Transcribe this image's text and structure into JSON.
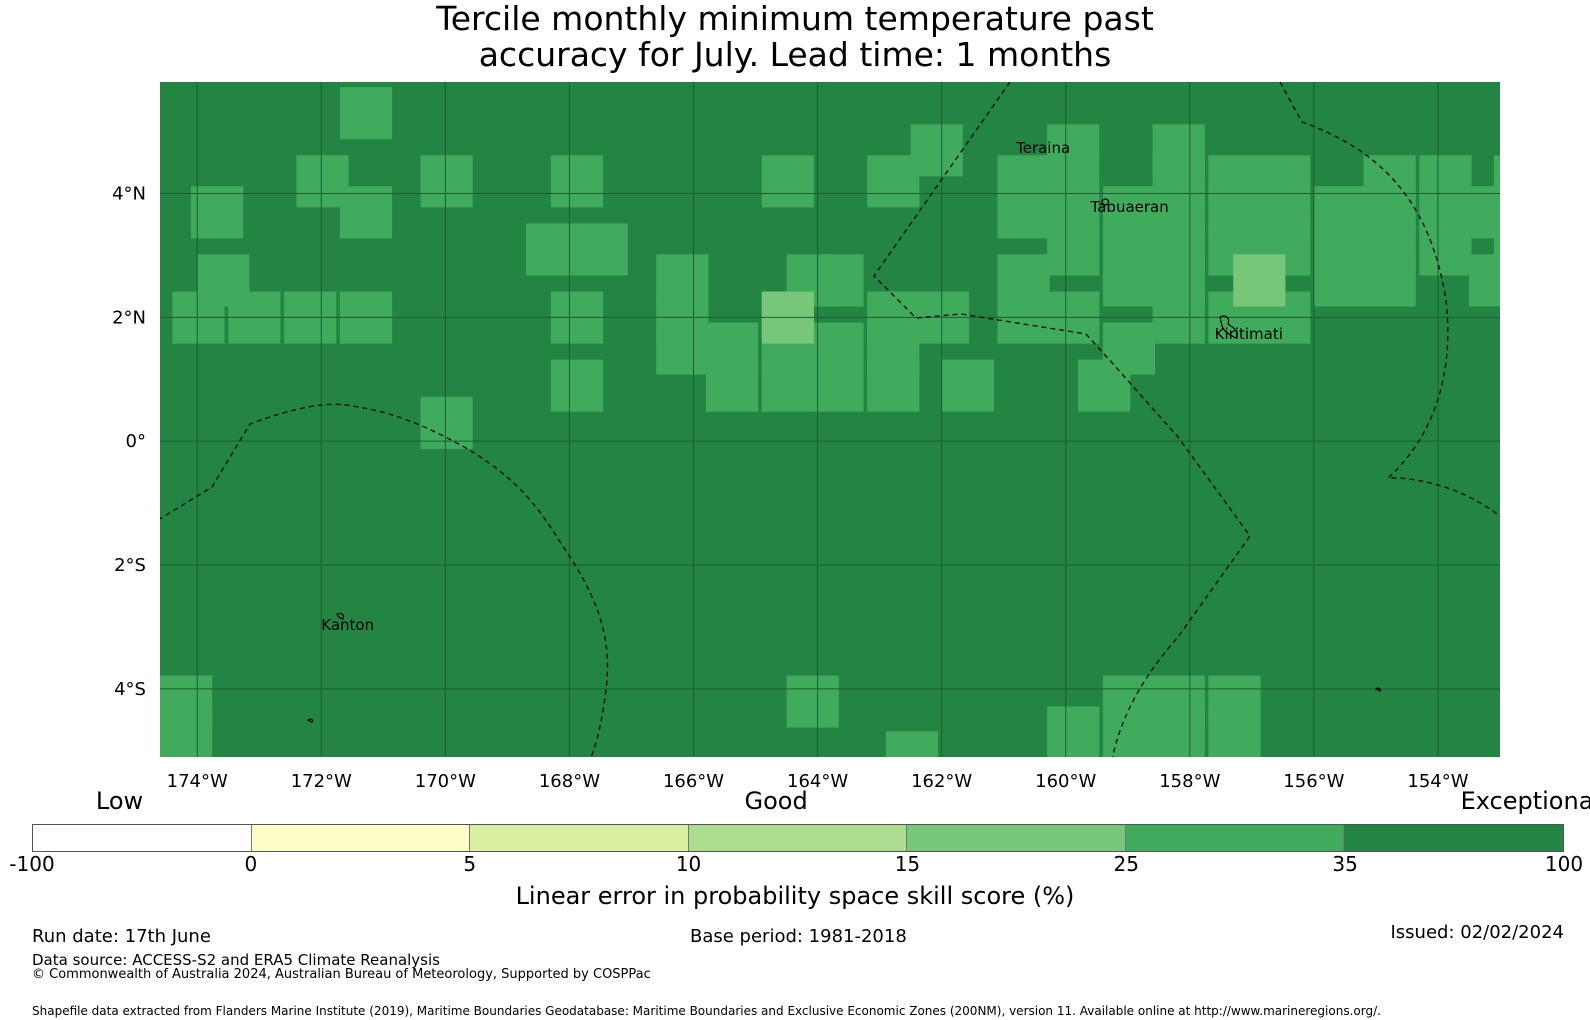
{
  "title_line1": "Tercile monthly minimum temperature past",
  "title_line2": "accuracy for July. Lead time: 1 months",
  "map": {
    "extent": {
      "lon_min": -174.6,
      "lon_max": -153.0,
      "lat_min": -5.1,
      "lat_max": 5.8
    },
    "grid_cell_deg": 0.833,
    "base_color": "#238443",
    "lon_ticks": [
      {
        "value": -174,
        "label": "174°W"
      },
      {
        "value": -172,
        "label": "172°W"
      },
      {
        "value": -170,
        "label": "170°W"
      },
      {
        "value": -168,
        "label": "168°W"
      },
      {
        "value": -166,
        "label": "166°W"
      },
      {
        "value": -164,
        "label": "164°W"
      },
      {
        "value": -162,
        "label": "162°W"
      },
      {
        "value": -160,
        "label": "160°W"
      },
      {
        "value": -158,
        "label": "158°W"
      },
      {
        "value": -156,
        "label": "156°W"
      },
      {
        "value": -154,
        "label": "154°W"
      }
    ],
    "lat_ticks": [
      {
        "value": 4,
        "label": "4°N"
      },
      {
        "value": 2,
        "label": "2°N"
      },
      {
        "value": 0,
        "label": "0°"
      },
      {
        "value": -2,
        "label": "2°S"
      },
      {
        "value": -4,
        "label": "4°S"
      }
    ],
    "places": [
      {
        "name": "Teraina",
        "lon": -160.8,
        "lat": 4.65
      },
      {
        "name": "Tabuaeran",
        "lon": -159.6,
        "lat": 3.7
      },
      {
        "name": "Kiritimati",
        "lon": -157.6,
        "lat": 1.65
      },
      {
        "name": "Kanton",
        "lon": -172.0,
        "lat": -3.05
      }
    ],
    "skill_cells": [
      {
        "lon": -171.7,
        "lat": 5.3,
        "v": 30
      },
      {
        "lon": -170.4,
        "lat": 4.2,
        "v": 30
      },
      {
        "lon": -174.1,
        "lat": 3.7,
        "v": 30
      },
      {
        "lon": -172.4,
        "lat": 4.2,
        "v": 30
      },
      {
        "lon": -171.7,
        "lat": 3.7,
        "v": 30
      },
      {
        "lon": -168.3,
        "lat": 4.2,
        "v": 30
      },
      {
        "lon": -164.9,
        "lat": 4.2,
        "v": 30
      },
      {
        "lon": -163.2,
        "lat": 4.2,
        "v": 30
      },
      {
        "lon": -162.5,
        "lat": 4.7,
        "v": 30
      },
      {
        "lon": -168.7,
        "lat": 3.1,
        "v": 30
      },
      {
        "lon": -167.9,
        "lat": 3.1,
        "v": 30
      },
      {
        "lon": -174.0,
        "lat": 2.6,
        "v": 30
      },
      {
        "lon": -174.4,
        "lat": 2.0,
        "v": 30
      },
      {
        "lon": -173.5,
        "lat": 2.0,
        "v": 30
      },
      {
        "lon": -172.6,
        "lat": 2.0,
        "v": 30
      },
      {
        "lon": -171.7,
        "lat": 2.0,
        "v": 30
      },
      {
        "lon": -168.3,
        "lat": 2.0,
        "v": 30
      },
      {
        "lon": -168.3,
        "lat": 0.9,
        "v": 30
      },
      {
        "lon": -170.4,
        "lat": 0.3,
        "v": 30
      },
      {
        "lon": -166.6,
        "lat": 2.6,
        "v": 30
      },
      {
        "lon": -166.6,
        "lat": 2.0,
        "v": 30
      },
      {
        "lon": -166.6,
        "lat": 1.5,
        "v": 30
      },
      {
        "lon": -165.8,
        "lat": 1.5,
        "v": 30
      },
      {
        "lon": -165.8,
        "lat": 0.9,
        "v": 30
      },
      {
        "lon": -164.9,
        "lat": 2.0,
        "v": 30
      },
      {
        "lon": -164.9,
        "lat": 1.5,
        "v": 30
      },
      {
        "lon": -164.9,
        "lat": 0.9,
        "v": 30
      },
      {
        "lon": -164.1,
        "lat": 2.6,
        "v": 30
      },
      {
        "lon": -164.1,
        "lat": 1.5,
        "v": 30
      },
      {
        "lon": -164.1,
        "lat": 0.9,
        "v": 30
      },
      {
        "lon": -164.5,
        "lat": 2.6,
        "v": 30
      },
      {
        "lon": -163.2,
        "lat": 2.0,
        "v": 30
      },
      {
        "lon": -163.2,
        "lat": 1.5,
        "v": 30
      },
      {
        "lon": -163.2,
        "lat": 0.9,
        "v": 30
      },
      {
        "lon": -162.4,
        "lat": 2.0,
        "v": 30
      },
      {
        "lon": -162.0,
        "lat": 0.9,
        "v": 30
      },
      {
        "lon": -161.1,
        "lat": 2.6,
        "v": 30
      },
      {
        "lon": -161.1,
        "lat": 2.0,
        "v": 30
      },
      {
        "lon": -161.1,
        "lat": 4.2,
        "v": 30
      },
      {
        "lon": -161.1,
        "lat": 3.7,
        "v": 30
      },
      {
        "lon": -160.3,
        "lat": 4.7,
        "v": 30
      },
      {
        "lon": -160.3,
        "lat": 4.2,
        "v": 30
      },
      {
        "lon": -160.3,
        "lat": 3.7,
        "v": 30
      },
      {
        "lon": -160.3,
        "lat": 3.1,
        "v": 30
      },
      {
        "lon": -159.4,
        "lat": 3.7,
        "v": 30
      },
      {
        "lon": -159.4,
        "lat": 3.1,
        "v": 30
      },
      {
        "lon": -159.4,
        "lat": 2.6,
        "v": 30
      },
      {
        "lon": -158.6,
        "lat": 4.7,
        "v": 30
      },
      {
        "lon": -158.6,
        "lat": 4.2,
        "v": 30
      },
      {
        "lon": -158.6,
        "lat": 3.7,
        "v": 30
      },
      {
        "lon": -158.6,
        "lat": 3.1,
        "v": 30
      },
      {
        "lon": -158.6,
        "lat": 2.6,
        "v": 30
      },
      {
        "lon": -158.6,
        "lat": 2.0,
        "v": 30
      },
      {
        "lon": -157.7,
        "lat": 4.2,
        "v": 30
      },
      {
        "lon": -157.7,
        "lat": 3.7,
        "v": 30
      },
      {
        "lon": -157.7,
        "lat": 3.1,
        "v": 30
      },
      {
        "lon": -157.7,
        "lat": 2.0,
        "v": 30
      },
      {
        "lon": -156.9,
        "lat": 4.2,
        "v": 30
      },
      {
        "lon": -156.9,
        "lat": 3.7,
        "v": 30
      },
      {
        "lon": -156.9,
        "lat": 3.1,
        "v": 30
      },
      {
        "lon": -156.9,
        "lat": 2.0,
        "v": 30
      },
      {
        "lon": -156.0,
        "lat": 3.7,
        "v": 30
      },
      {
        "lon": -156.0,
        "lat": 3.1,
        "v": 30
      },
      {
        "lon": -156.0,
        "lat": 2.6,
        "v": 30
      },
      {
        "lon": -155.2,
        "lat": 4.2,
        "v": 30
      },
      {
        "lon": -155.2,
        "lat": 3.7,
        "v": 30
      },
      {
        "lon": -155.2,
        "lat": 3.1,
        "v": 30
      },
      {
        "lon": -155.2,
        "lat": 2.6,
        "v": 30
      },
      {
        "lon": -154.3,
        "lat": 4.2,
        "v": 30
      },
      {
        "lon": -154.3,
        "lat": 3.7,
        "v": 30
      },
      {
        "lon": -154.3,
        "lat": 3.1,
        "v": 30
      },
      {
        "lon": -153.5,
        "lat": 3.7,
        "v": 30
      },
      {
        "lon": -153.5,
        "lat": 2.6,
        "v": 30
      },
      {
        "lon": -153.1,
        "lat": 4.2,
        "v": 30
      },
      {
        "lon": -153.1,
        "lat": 3.1,
        "v": 30
      },
      {
        "lon": -159.8,
        "lat": 0.9,
        "v": 30
      },
      {
        "lon": -160.3,
        "lat": 2.0,
        "v": 30
      },
      {
        "lon": -159.4,
        "lat": 1.5,
        "v": 30
      },
      {
        "lon": -164.5,
        "lat": -4.2,
        "v": 30
      },
      {
        "lon": -160.3,
        "lat": -4.7,
        "v": 30
      },
      {
        "lon": -159.4,
        "lat": -4.2,
        "v": 30
      },
      {
        "lon": -159.4,
        "lat": -4.7,
        "v": 30
      },
      {
        "lon": -158.6,
        "lat": -4.2,
        "v": 30
      },
      {
        "lon": -158.6,
        "lat": -4.7,
        "v": 30
      },
      {
        "lon": -157.7,
        "lat": -4.2,
        "v": 30
      },
      {
        "lon": -157.7,
        "lat": -4.7,
        "v": 30
      },
      {
        "lon": -174.6,
        "lat": -4.2,
        "v": 30
      },
      {
        "lon": -174.6,
        "lat": -4.7,
        "v": 30
      },
      {
        "lon": -162.9,
        "lat": -5.1,
        "v": 30
      },
      {
        "lon": -164.9,
        "lat": 2.0,
        "v": 20
      },
      {
        "lon": -157.3,
        "lat": 2.6,
        "v": 20
      }
    ]
  },
  "colorbar": {
    "categories": [
      {
        "label": "Low",
        "value": -60
      },
      {
        "label": "Good",
        "value": 12
      },
      {
        "label": "Exceptional",
        "value": 90
      }
    ],
    "segments": [
      {
        "from": -100,
        "to": 0,
        "color": "#ffffff"
      },
      {
        "from": 0,
        "to": 5,
        "color": "#ffffcc"
      },
      {
        "from": 5,
        "to": 10,
        "color": "#d9f0a3"
      },
      {
        "from": 10,
        "to": 15,
        "color": "#addd8e"
      },
      {
        "from": 15,
        "to": 25,
        "color": "#78c679"
      },
      {
        "from": 25,
        "to": 35,
        "color": "#41ab5d"
      },
      {
        "from": 35,
        "to": 100,
        "color": "#238443"
      }
    ],
    "tick_labels": [
      "-100",
      "0",
      "5",
      "10",
      "15",
      "25",
      "35",
      "100"
    ],
    "label": "Linear error in probability space skill score (%)"
  },
  "footer": {
    "run_date": "Run date: 17th June",
    "base_period": "Base period: 1981-2018",
    "issued": "Issued: 02/02/2024",
    "data_source": "Data source: ACCESS-S2 and ERA5 Climate Reanalysis",
    "copyright": "© Commonwealth of Australia 2024, Australian Bureau of Meteorology, Supported by COSPPac",
    "shapefile": "Shapefile data extracted from Flanders Marine Institute (2019), Maritime Boundaries Geodatabase: Maritime Boundaries and Exclusive Economic Zones (200NM), version 11. Available online at http://www.marineregions.org/."
  }
}
